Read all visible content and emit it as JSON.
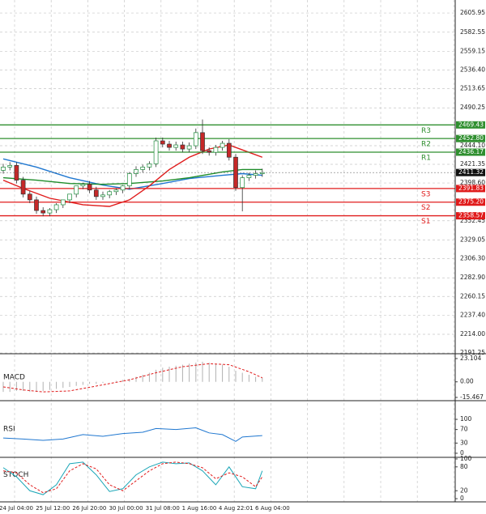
{
  "chart_data": [
    {
      "type": "candlestick",
      "open": [
        2414,
        2418,
        2420,
        2402,
        2385,
        2378,
        2365,
        2362,
        2366,
        2372,
        2378,
        2385,
        2395,
        2397,
        2390,
        2382,
        2384,
        2388,
        2390,
        2395,
        2410,
        2415,
        2418,
        2422,
        2450,
        2446,
        2442,
        2445,
        2440,
        2444,
        2460,
        2438,
        2436,
        2442,
        2447,
        2430,
        2393,
        2405,
        2408,
        2410
      ],
      "high": [
        2422,
        2424,
        2424,
        2406,
        2389,
        2382,
        2369,
        2368,
        2374,
        2378,
        2384,
        2391,
        2399,
        2401,
        2394,
        2388,
        2390,
        2392,
        2396,
        2412,
        2419,
        2421,
        2425,
        2454,
        2454,
        2450,
        2449,
        2449,
        2448,
        2465,
        2476,
        2442,
        2445,
        2450,
        2452,
        2434,
        2408,
        2411,
        2414,
        2416
      ],
      "low": [
        2410,
        2414,
        2398,
        2381,
        2374,
        2361,
        2358,
        2358,
        2362,
        2368,
        2374,
        2381,
        2391,
        2386,
        2378,
        2378,
        2380,
        2384,
        2386,
        2391,
        2406,
        2411,
        2414,
        2418,
        2442,
        2438,
        2438,
        2436,
        2436,
        2440,
        2434,
        2432,
        2432,
        2438,
        2426,
        2389,
        2364,
        2401,
        2404,
        2406
      ],
      "close": [
        2418,
        2420,
        2402,
        2385,
        2378,
        2365,
        2362,
        2366,
        2372,
        2378,
        2385,
        2395,
        2397,
        2390,
        2382,
        2384,
        2388,
        2390,
        2395,
        2410,
        2415,
        2418,
        2422,
        2450,
        2446,
        2442,
        2445,
        2440,
        2444,
        2460,
        2438,
        2436,
        2442,
        2447,
        2430,
        2393,
        2405,
        2408,
        2410,
        2411.32
      ],
      "up_color": "#1b8a3a",
      "down_color": "#c62828",
      "moving_averages": [
        {
          "color": "#1f77d0",
          "x": [
            0,
            5,
            10,
            15,
            19,
            24,
            28,
            33,
            36,
            39
          ],
          "values": [
            2428,
            2418,
            2405,
            2396,
            2391,
            2398,
            2404,
            2408,
            2410,
            2408
          ]
        },
        {
          "color": "#1e8c2a",
          "x": [
            0,
            5,
            10,
            15,
            19,
            24,
            28,
            33,
            36,
            39
          ],
          "values": [
            2405,
            2402,
            2398,
            2397,
            2398,
            2401,
            2405,
            2412,
            2415,
            2415
          ]
        },
        {
          "color": "#e01b1b",
          "x": [
            0,
            3,
            7,
            12,
            16,
            19,
            22,
            25,
            28,
            31,
            34,
            37,
            39
          ],
          "values": [
            2402,
            2392,
            2380,
            2372,
            2370,
            2378,
            2395,
            2415,
            2430,
            2440,
            2445,
            2436,
            2430
          ]
        }
      ],
      "levels": [
        {
          "name": "R3",
          "value": 2469.43,
          "color": "#2f8f2f"
        },
        {
          "name": "R2",
          "value": 2452.8,
          "value_label": "2452.80",
          "color": "#2f8f2f"
        },
        {
          "name": "R1",
          "value": 2436.17,
          "color": "#2f8f2f"
        },
        {
          "name": "S3",
          "value": 2391.83,
          "color": "#e01b1b"
        },
        {
          "name": "S2",
          "value": 2375.2,
          "value_label": "2375.20",
          "color": "#e01b1b"
        },
        {
          "name": "S1",
          "value": 2358.57,
          "color": "#e01b1b"
        }
      ],
      "last_price": 2411.32,
      "ylim": [
        2190.3,
        2621.8
      ],
      "yticks": [
        2605.95,
        2582.55,
        2559.15,
        {
          "value": 2536.4,
          "label": "2536.40"
        },
        2513.65,
        2490.25,
        {
          "value": 2444.1,
          "label": "2444.10"
        },
        2421.35,
        {
          "value": 2398.6,
          "label": "2398.60"
        },
        2352.45,
        2329.05,
        {
          "value": 2306.3,
          "label": "2306.30"
        },
        {
          "value": 2282.9,
          "label": "2282.90"
        },
        2260.15,
        {
          "value": 2237.4,
          "label": "2237.40"
        },
        {
          "value": 2214,
          "label": "2214.00"
        },
        2191.25
      ],
      "grid": true
    },
    {
      "type": "macd",
      "title": "MACD",
      "histogram": [
        -10,
        -10,
        -9,
        -9,
        -10,
        -10,
        -9,
        -8,
        -7,
        -6,
        -5,
        -4,
        -3,
        -2,
        -2,
        -1,
        0,
        1,
        2,
        3,
        5,
        7,
        9,
        12,
        14,
        15,
        16,
        17,
        18,
        19,
        20,
        19,
        18,
        17,
        15,
        11,
        9,
        7,
        5,
        4
      ],
      "histogram_color": "#b0b0b0",
      "signal": {
        "color": "#e01b1b",
        "x": [
          0,
          3,
          6,
          10,
          15,
          19,
          23,
          27,
          31,
          34,
          37,
          39
        ],
        "values": [
          -5,
          -8,
          -10,
          -9,
          -3,
          2,
          9,
          15,
          18,
          17,
          10,
          4
        ]
      },
      "ylim": [
        -18.7,
        27.9
      ],
      "yticks": [
        23.104,
        {
          "value": 0,
          "label": "0.00"
        },
        -15.467
      ]
    },
    {
      "type": "line",
      "title": "RSI",
      "series": [
        {
          "color": "#1f77d0",
          "x": [
            0,
            3,
            6,
            9,
            12,
            15,
            18,
            21,
            23,
            26,
            29,
            31,
            33,
            35,
            36,
            39
          ],
          "values": [
            45,
            42,
            38,
            42,
            55,
            50,
            58,
            62,
            73,
            70,
            75,
            60,
            55,
            35,
            48,
            52
          ]
        }
      ],
      "ylim": [
        -12,
        155
      ],
      "yticks": [
        100,
        70,
        30,
        0
      ]
    },
    {
      "type": "line",
      "title": "STOCH",
      "series": [
        {
          "color": "#1aa6b7",
          "x": [
            0,
            2,
            4,
            6,
            8,
            10,
            12,
            14,
            16,
            18,
            20,
            22,
            24,
            26,
            28,
            30,
            32,
            34,
            36,
            38,
            39
          ],
          "values": [
            78,
            55,
            20,
            10,
            35,
            88,
            92,
            60,
            18,
            25,
            60,
            80,
            92,
            88,
            90,
            70,
            35,
            80,
            30,
            25,
            70
          ]
        },
        {
          "color": "#e01b1b",
          "dash": true,
          "x": [
            0,
            2,
            4,
            6,
            8,
            10,
            12,
            14,
            16,
            18,
            20,
            22,
            24,
            26,
            28,
            30,
            32,
            34,
            36,
            38,
            39
          ],
          "values": [
            70,
            65,
            35,
            15,
            25,
            70,
            88,
            75,
            35,
            20,
            45,
            70,
            88,
            92,
            88,
            78,
            50,
            65,
            55,
            30,
            55
          ]
        }
      ],
      "ylim": [
        -8,
        104
      ],
      "yticks": [
        100,
        80,
        20,
        0
      ]
    }
  ],
  "time_labels": [
    "24 Jul 04:00",
    "25 Jul 12:00",
    "26 Jul 20:00",
    "30 Jul 00:00",
    "31 Jul 08:00",
    "1 Aug 16:00",
    "4 Aug 22:01",
    "6 Aug 04:00"
  ]
}
